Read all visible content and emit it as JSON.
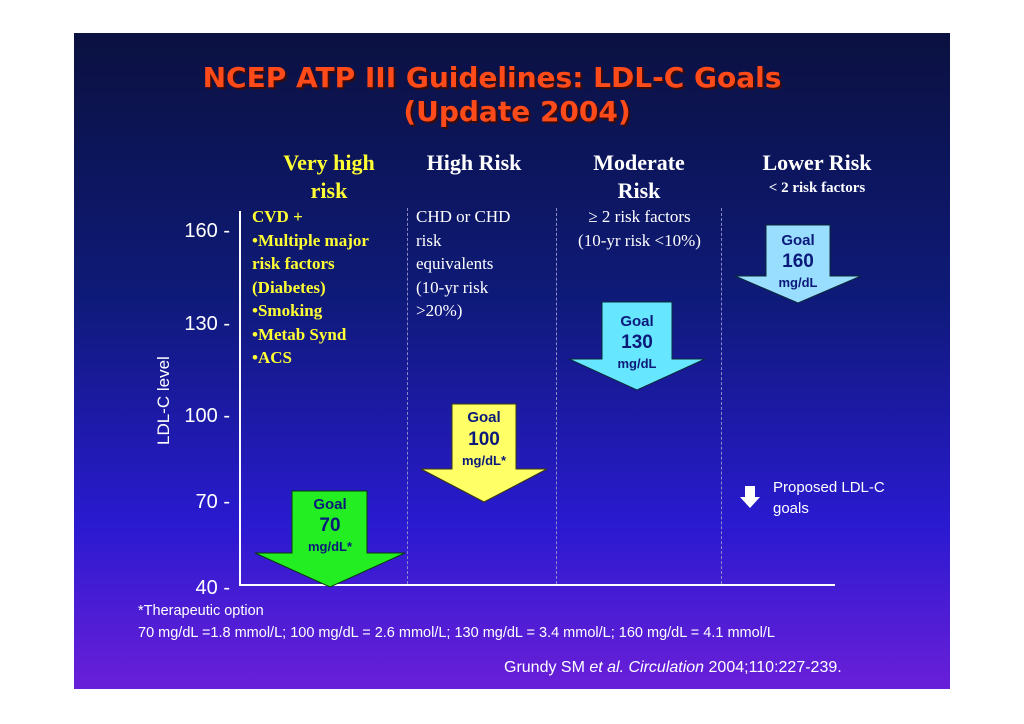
{
  "title": {
    "line1": "NCEP ATP III Guidelines: LDL-C Goals",
    "line2": "(Update 2004)"
  },
  "y_axis": {
    "label": "LDL-C level",
    "ticks": [
      "160 -",
      "130 -",
      "100 -",
      "70 -",
      "40 -"
    ]
  },
  "columns": [
    {
      "heading_line1": "Very high",
      "heading_line2": "risk",
      "criteria": [
        "CVD +",
        "•Multiple major",
        "risk factors",
        "(Diabetes)",
        "•Smoking",
        "•Metab Synd",
        "•ACS"
      ],
      "goal": {
        "word": "Goal",
        "value": "70",
        "unit": "mg/dL*",
        "ldl": 70,
        "color": "#22ee22"
      }
    },
    {
      "heading_line1": "High Risk",
      "criteria": [
        "CHD or CHD",
        "risk",
        "equivalents",
        "(10-yr risk",
        ">20%)"
      ],
      "goal": {
        "word": "Goal",
        "value": "100",
        "unit": "mg/dL*",
        "ldl": 100,
        "color": "#ffff66"
      }
    },
    {
      "heading_line1": "Moderate",
      "heading_line2": "Risk",
      "criteria": [
        "≥ 2 risk factors",
        "(10-yr risk <10%)"
      ],
      "goal": {
        "word": "Goal",
        "value": "130",
        "unit": "mg/dL",
        "ldl": 130,
        "color": "#66e6ff"
      }
    },
    {
      "heading_line1": "Lower Risk",
      "subheading": "< 2 risk factors",
      "goal": {
        "word": "Goal",
        "value": "160",
        "unit": "mg/dL",
        "ldl": 160,
        "color": "#99ddff"
      }
    }
  ],
  "legend": {
    "line1": "Proposed LDL-C",
    "line2": "goals"
  },
  "footnotes": {
    "therapeutic": "*Therapeutic option",
    "conversion": "70 mg/dL =1.8 mmol/L; 100 mg/dL = 2.6 mmol/L; 130 mg/dL = 3.4 mmol/L; 160 mg/dL = 4.1 mmol/L"
  },
  "citation": {
    "author": "Grundy SM ",
    "etal": "et al. Circulation",
    "ref": " 2004;110:227-239."
  }
}
